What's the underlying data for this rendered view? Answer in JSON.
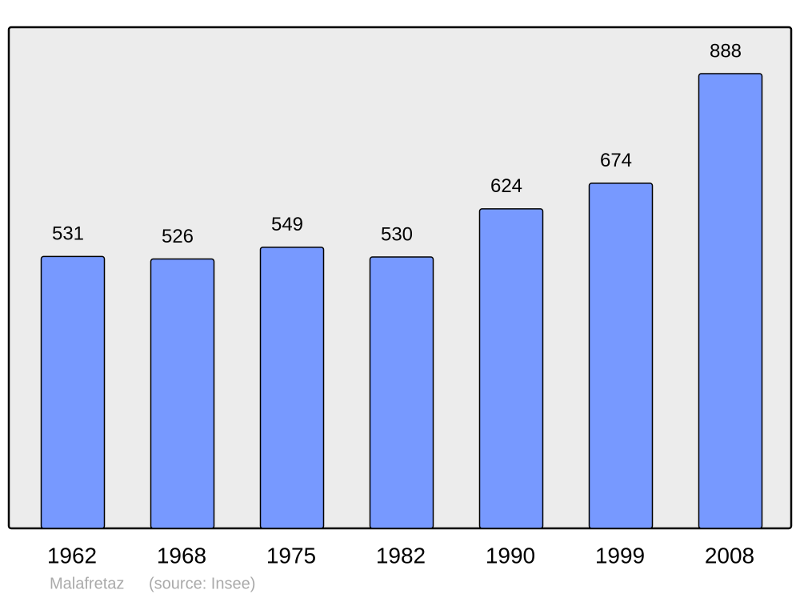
{
  "chart_data": {
    "type": "bar",
    "categories": [
      "1962",
      "1968",
      "1975",
      "1982",
      "1990",
      "1999",
      "2008"
    ],
    "values": [
      531,
      526,
      549,
      530,
      624,
      674,
      888
    ],
    "color": "#7799ff",
    "caption": "Malafretaz",
    "source": "(source: Insee)"
  }
}
